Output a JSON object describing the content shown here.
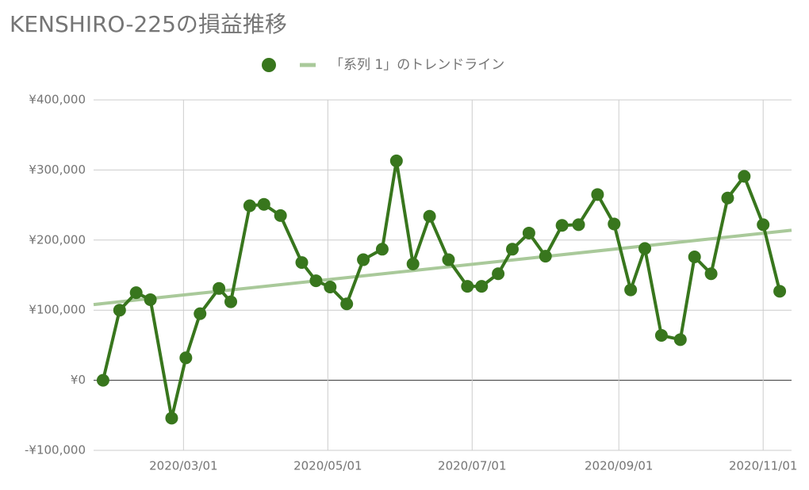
{
  "chart_data": {
    "type": "line",
    "title": "KENSHIRO-225の損益推移",
    "x": [
      "2020-01-27",
      "2020-02-03",
      "2020-02-10",
      "2020-02-16",
      "2020-02-25",
      "2020-03-02",
      "2020-03-08",
      "2020-03-16",
      "2020-03-21",
      "2020-03-29",
      "2020-04-04",
      "2020-04-11",
      "2020-04-20",
      "2020-04-26",
      "2020-05-02",
      "2020-05-09",
      "2020-05-16",
      "2020-05-24",
      "2020-05-30",
      "2020-06-06",
      "2020-06-13",
      "2020-06-21",
      "2020-06-29",
      "2020-07-05",
      "2020-07-12",
      "2020-07-18",
      "2020-07-25",
      "2020-08-01",
      "2020-08-08",
      "2020-08-15",
      "2020-08-23",
      "2020-08-30",
      "2020-09-06",
      "2020-09-12",
      "2020-09-19",
      "2020-09-27",
      "2020-10-03",
      "2020-10-10",
      "2020-10-17",
      "2020-10-24",
      "2020-11-01",
      "2020-11-08"
    ],
    "series": [
      {
        "color": "#38761d",
        "values": [
          0,
          100000,
          125000,
          115000,
          -54000,
          32000,
          95000,
          131000,
          112000,
          249000,
          251000,
          235000,
          168000,
          142000,
          133000,
          109000,
          172000,
          187000,
          313000,
          166000,
          234000,
          172000,
          134000,
          134000,
          152000,
          187000,
          210000,
          177000,
          221000,
          222000,
          265000,
          223000,
          129000,
          188000,
          64000,
          58000,
          176000,
          152000,
          260000,
          291000,
          222000,
          127000
        ]
      }
    ],
    "trendline": {
      "name": "「系列 1」のトレンドライン",
      "color": "#a9c99a",
      "x": [
        "2020-01-23",
        "2020-11-13"
      ],
      "values": [
        108000,
        214000
      ]
    },
    "xlim": [
      "2020-01-23",
      "2020-11-13"
    ],
    "xticks": [
      {
        "value": "2020-03-01",
        "label": "2020/03/01"
      },
      {
        "value": "2020-05-01",
        "label": "2020/05/01"
      },
      {
        "value": "2020-07-01",
        "label": "2020/07/01"
      },
      {
        "value": "2020-09-01",
        "label": "2020/09/01"
      },
      {
        "value": "2020-11-01",
        "label": "2020/11/01"
      }
    ],
    "ylim": [
      -100000,
      400000
    ],
    "yticks": [
      {
        "value": -100000,
        "label": "-¥100,000"
      },
      {
        "value": 0,
        "label": "¥0"
      },
      {
        "value": 100000,
        "label": "¥100,000"
      },
      {
        "value": 200000,
        "label": "¥200,000"
      },
      {
        "value": 300000,
        "label": "¥300,000"
      },
      {
        "value": 400000,
        "label": "¥400,000"
      }
    ],
    "grid": true
  }
}
